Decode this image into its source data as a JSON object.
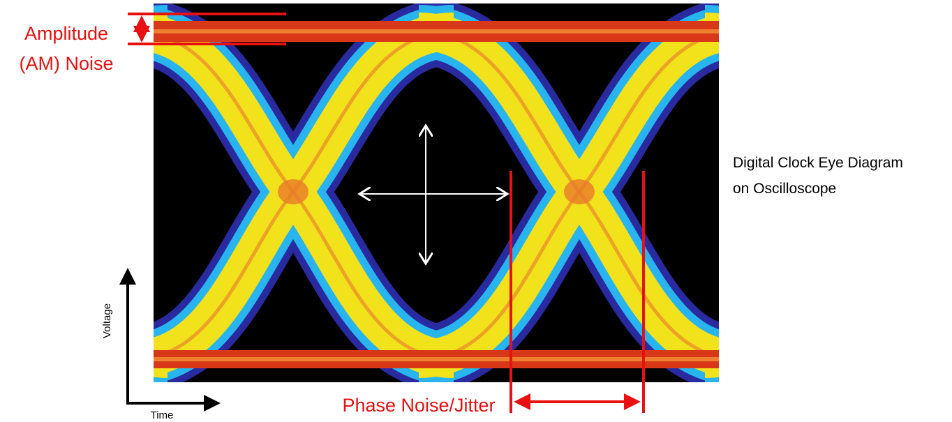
{
  "annotations": {
    "amplitude_noise": [
      "Amplitude",
      "(AM) Noise"
    ],
    "phase_noise": "Phase Noise/Jitter"
  },
  "caption": [
    "Digital Clock Eye Diagram",
    "on Oscilloscope"
  ],
  "axes": {
    "y_label": "Voltage",
    "x_label": "Time"
  }
}
